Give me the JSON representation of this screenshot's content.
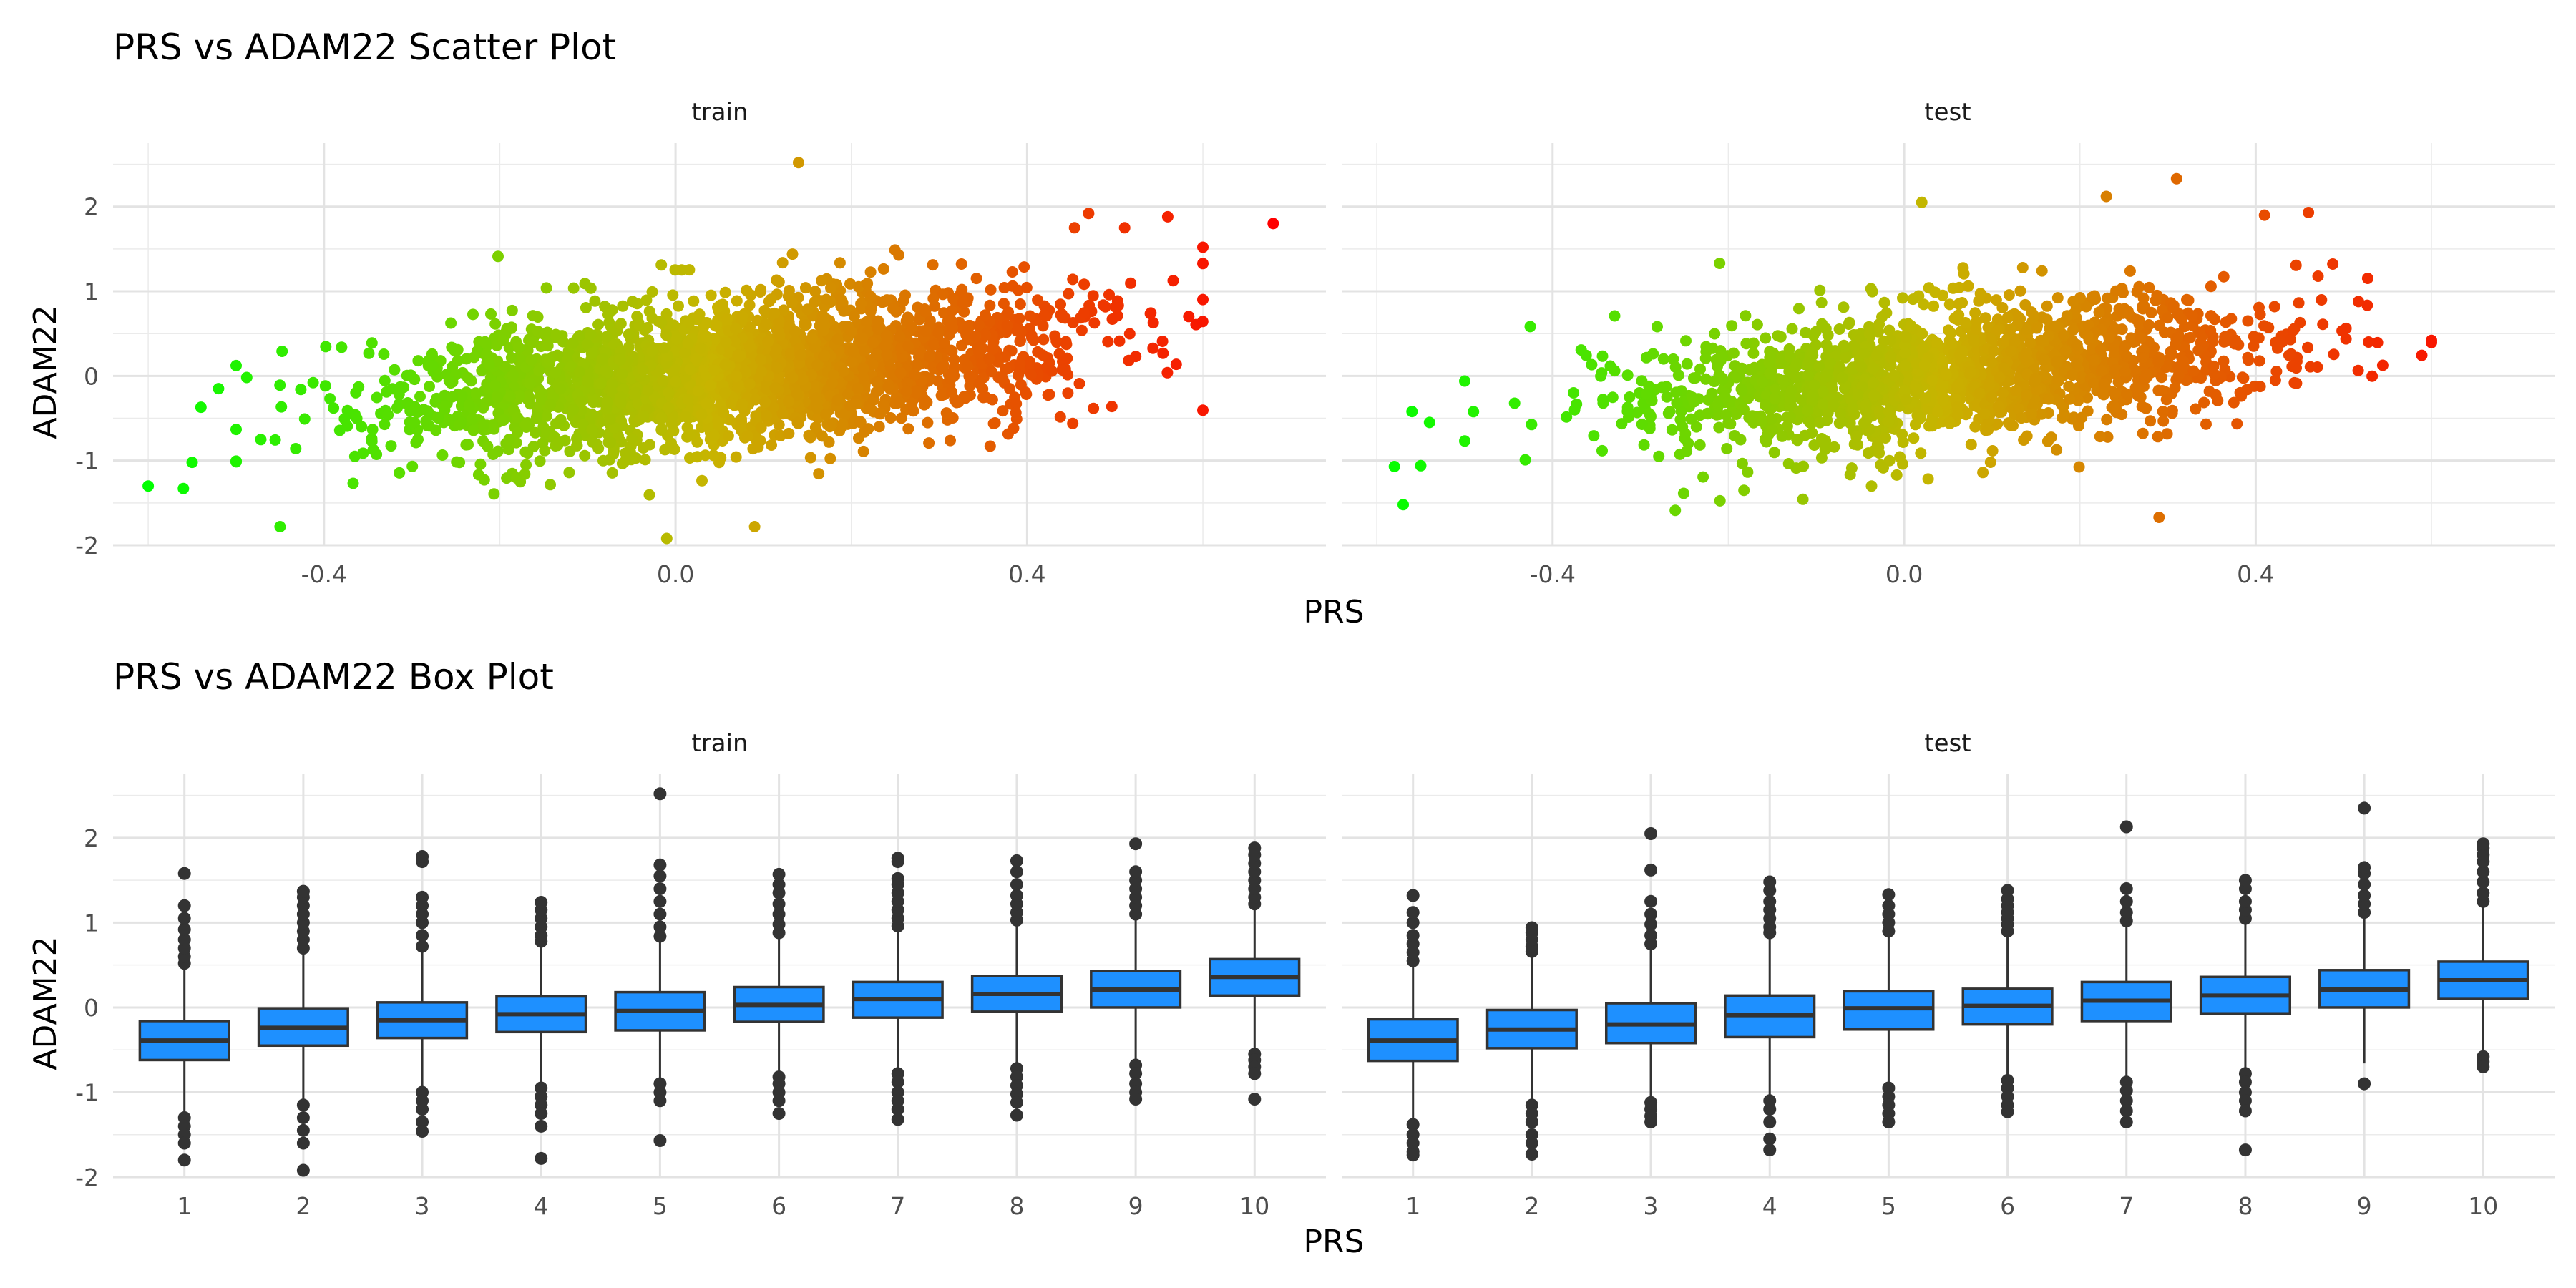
{
  "chart_data": [
    {
      "type": "scatter",
      "title": "PRS vs ADAM22 Scatter Plot",
      "xlabel": "PRS",
      "ylabel": "ADAM22",
      "xlim": [
        -0.64,
        0.74
      ],
      "ylim": [
        -2.0,
        2.75
      ],
      "x_ticks": [
        "-0.4",
        "0.0",
        "0.4"
      ],
      "x_tick_values": [
        -0.4,
        0.0,
        0.4
      ],
      "y_ticks": [
        "-2",
        "-1",
        "0",
        "1",
        "2"
      ],
      "y_tick_values": [
        -2,
        -1,
        0,
        1,
        2
      ],
      "grid": true,
      "color_scale": {
        "low": "#00ff00",
        "mid": "#c8b400",
        "high": "#ff0000",
        "domain": [
          -0.6,
          0.68
        ]
      },
      "panels": [
        {
          "name": "train",
          "cloud": {
            "count": 2600,
            "x_mean": 0.06,
            "x_sd": 0.19,
            "intercept": 0.0,
            "slope": 1.55,
            "resid_sd": 0.42,
            "seed": 11
          },
          "outliers": [
            [
              -0.6,
              -1.3
            ],
            [
              -0.56,
              -1.33
            ],
            [
              -0.55,
              -1.02
            ],
            [
              -0.45,
              -1.78
            ],
            [
              0.14,
              2.52
            ],
            [
              0.68,
              1.8
            ],
            [
              0.6,
              1.52
            ],
            [
              -0.01,
              -1.92
            ],
            [
              0.09,
              -1.78
            ],
            [
              -0.54,
              -0.37
            ],
            [
              -0.52,
              -0.15
            ],
            [
              0.47,
              1.92
            ],
            [
              0.56,
              1.88
            ]
          ]
        },
        {
          "name": "test",
          "cloud": {
            "count": 1700,
            "x_mean": 0.06,
            "x_sd": 0.18,
            "intercept": -0.02,
            "slope": 1.45,
            "resid_sd": 0.4,
            "seed": 29
          },
          "outliers": [
            [
              -0.58,
              -1.07
            ],
            [
              -0.55,
              -1.06
            ],
            [
              -0.57,
              -1.52
            ],
            [
              -0.56,
              -0.42
            ],
            [
              -0.54,
              -0.55
            ],
            [
              0.31,
              2.33
            ],
            [
              0.23,
              2.12
            ],
            [
              0.02,
              2.05
            ],
            [
              -0.21,
              1.33
            ],
            [
              0.29,
              -1.67
            ],
            [
              0.6,
              0.42
            ],
            [
              0.41,
              1.9
            ],
            [
              0.46,
              1.93
            ]
          ]
        }
      ]
    },
    {
      "type": "box",
      "title": "PRS vs ADAM22 Box Plot",
      "xlabel": "PRS",
      "ylabel": "ADAM22",
      "categories": [
        "1",
        "2",
        "3",
        "4",
        "5",
        "6",
        "7",
        "8",
        "9",
        "10"
      ],
      "ylim": [
        -2.0,
        2.75
      ],
      "y_ticks": [
        "-2",
        "-1",
        "0",
        "1",
        "2"
      ],
      "y_tick_values": [
        -2,
        -1,
        0,
        1,
        2
      ],
      "grid": true,
      "box_color": "#1e90ff",
      "panels": [
        {
          "name": "train",
          "boxes": [
            {
              "q1": -0.62,
              "median": -0.39,
              "q3": -0.16,
              "lower": -1.27,
              "upper": 0.5,
              "outliers": [
                0.52,
                0.6,
                0.7,
                0.8,
                0.92,
                1.05,
                1.2,
                1.58,
                -1.3,
                -1.4,
                -1.5,
                -1.6,
                -1.8
              ]
            },
            {
              "q1": -0.45,
              "median": -0.24,
              "q3": -0.01,
              "lower": -1.1,
              "upper": 0.64,
              "outliers": [
                0.7,
                0.8,
                0.9,
                1.0,
                1.1,
                1.2,
                1.3,
                1.37,
                -1.15,
                -1.3,
                -1.45,
                -1.6,
                -1.92
              ]
            },
            {
              "q1": -0.36,
              "median": -0.15,
              "q3": 0.06,
              "lower": -0.97,
              "upper": 0.68,
              "outliers": [
                0.72,
                0.85,
                1.0,
                1.1,
                1.2,
                1.3,
                1.72,
                1.78,
                -1.0,
                -1.1,
                -1.2,
                -1.35,
                -1.46
              ]
            },
            {
              "q1": -0.29,
              "median": -0.08,
              "q3": 0.13,
              "lower": -0.9,
              "upper": 0.74,
              "outliers": [
                0.78,
                0.85,
                0.95,
                1.05,
                1.15,
                1.24,
                -0.95,
                -1.05,
                -1.15,
                -1.25,
                -1.4,
                -1.78
              ]
            },
            {
              "q1": -0.27,
              "median": -0.04,
              "q3": 0.18,
              "lower": -0.88,
              "upper": 0.8,
              "outliers": [
                0.84,
                0.95,
                1.1,
                1.25,
                1.4,
                1.55,
                1.68,
                2.52,
                -0.9,
                -1.0,
                -1.1,
                -1.57
              ]
            },
            {
              "q1": -0.17,
              "median": 0.03,
              "q3": 0.24,
              "lower": -0.78,
              "upper": 0.84,
              "outliers": [
                0.88,
                0.98,
                1.1,
                1.22,
                1.35,
                1.45,
                1.57,
                -0.82,
                -0.9,
                -1.0,
                -1.1,
                -1.25
              ]
            },
            {
              "q1": -0.12,
              "median": 0.1,
              "q3": 0.3,
              "lower": -0.74,
              "upper": 0.92,
              "outliers": [
                0.96,
                1.05,
                1.15,
                1.25,
                1.35,
                1.45,
                1.52,
                1.72,
                1.76,
                -0.78,
                -0.88,
                -1.0,
                -1.1,
                -1.2,
                -1.32
              ]
            },
            {
              "q1": -0.05,
              "median": 0.16,
              "q3": 0.37,
              "lower": -0.68,
              "upper": 0.99,
              "outliers": [
                1.03,
                1.12,
                1.22,
                1.32,
                1.45,
                1.6,
                1.73,
                -0.72,
                -0.82,
                -0.92,
                -1.02,
                -1.12,
                -1.27
              ]
            },
            {
              "q1": 0.0,
              "median": 0.21,
              "q3": 0.43,
              "lower": -0.62,
              "upper": 1.05,
              "outliers": [
                1.1,
                1.2,
                1.3,
                1.4,
                1.5,
                1.6,
                1.93,
                -0.68,
                -0.78,
                -0.9,
                -1.0,
                -1.08
              ]
            },
            {
              "q1": 0.14,
              "median": 0.36,
              "q3": 0.57,
              "lower": -0.49,
              "upper": 1.18,
              "outliers": [
                1.22,
                1.3,
                1.4,
                1.5,
                1.6,
                1.7,
                1.8,
                1.88,
                -0.55,
                -0.62,
                -0.7,
                -0.78,
                -1.08
              ]
            }
          ]
        },
        {
          "name": "test",
          "boxes": [
            {
              "q1": -0.63,
              "median": -0.39,
              "q3": -0.14,
              "lower": -1.33,
              "upper": 0.5,
              "outliers": [
                0.55,
                0.65,
                0.75,
                0.85,
                1.0,
                1.12,
                1.32,
                -1.38,
                -1.5,
                -1.6,
                -1.7,
                -1.74
              ]
            },
            {
              "q1": -0.48,
              "median": -0.26,
              "q3": -0.03,
              "lower": -1.12,
              "upper": 0.62,
              "outliers": [
                0.66,
                0.72,
                0.8,
                0.88,
                0.94,
                -1.15,
                -1.25,
                -1.35,
                -1.5,
                -1.6,
                -1.73
              ]
            },
            {
              "q1": -0.42,
              "median": -0.2,
              "q3": 0.05,
              "lower": -1.1,
              "upper": 0.72,
              "outliers": [
                0.75,
                0.85,
                0.98,
                1.1,
                1.25,
                1.62,
                2.05,
                -1.12,
                -1.2,
                -1.28,
                -1.35
              ]
            },
            {
              "q1": -0.35,
              "median": -0.09,
              "q3": 0.14,
              "lower": -1.05,
              "upper": 0.85,
              "outliers": [
                0.88,
                0.95,
                1.05,
                1.15,
                1.25,
                1.38,
                1.48,
                -1.1,
                -1.2,
                -1.35,
                -1.55,
                -1.68
              ]
            },
            {
              "q1": -0.26,
              "median": -0.01,
              "q3": 0.19,
              "lower": -0.9,
              "upper": 0.86,
              "outliers": [
                0.9,
                1.0,
                1.1,
                1.2,
                1.33,
                -0.95,
                -1.05,
                -1.15,
                -1.25,
                -1.35
              ]
            },
            {
              "q1": -0.2,
              "median": 0.02,
              "q3": 0.22,
              "lower": -0.82,
              "upper": 0.86,
              "outliers": [
                0.9,
                0.98,
                1.05,
                1.12,
                1.2,
                1.28,
                1.38,
                -0.86,
                -0.95,
                -1.05,
                -1.15,
                -1.23
              ]
            },
            {
              "q1": -0.16,
              "median": 0.08,
              "q3": 0.3,
              "lower": -0.82,
              "upper": 0.98,
              "outliers": [
                1.02,
                1.12,
                1.25,
                1.4,
                2.13,
                -0.88,
                -0.98,
                -1.1,
                -1.22,
                -1.35
              ]
            },
            {
              "q1": -0.07,
              "median": 0.14,
              "q3": 0.36,
              "lower": -0.73,
              "upper": 1.0,
              "outliers": [
                1.05,
                1.15,
                1.25,
                1.4,
                1.5,
                -0.78,
                -0.88,
                -1.0,
                -1.1,
                -1.22,
                -1.68
              ]
            },
            {
              "q1": 0.0,
              "median": 0.21,
              "q3": 0.44,
              "lower": -0.66,
              "upper": 1.08,
              "outliers": [
                1.12,
                1.22,
                1.32,
                1.45,
                1.58,
                1.65,
                2.35,
                -0.9
              ]
            },
            {
              "q1": 0.1,
              "median": 0.32,
              "q3": 0.54,
              "lower": -0.52,
              "upper": 1.2,
              "outliers": [
                1.25,
                1.35,
                1.48,
                1.6,
                1.72,
                1.8,
                1.88,
                1.93,
                -0.58,
                -0.64,
                -0.7
              ]
            }
          ]
        }
      ]
    }
  ]
}
